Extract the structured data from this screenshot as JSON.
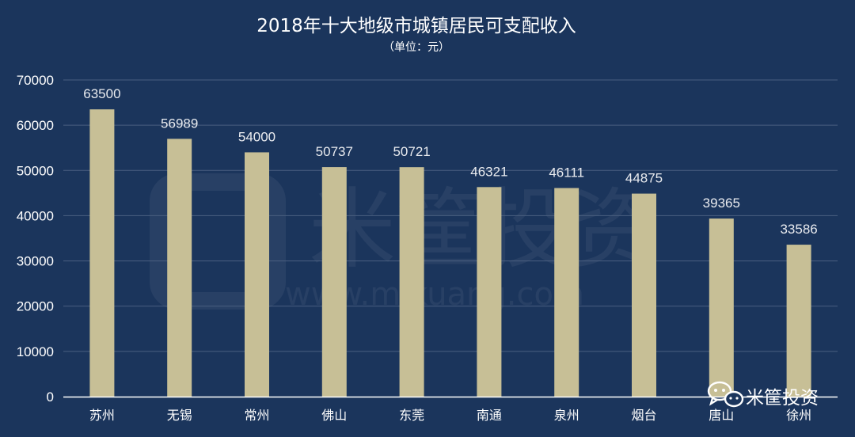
{
  "chart_data": {
    "type": "bar",
    "title": "2018年十大地级市城镇居民可支配收入",
    "subtitle": "（单位：元）",
    "categories": [
      "苏州",
      "无锡",
      "常州",
      "佛山",
      "东莞",
      "南通",
      "泉州",
      "烟台",
      "唐山",
      "徐州"
    ],
    "values": [
      63500,
      56989,
      54000,
      50737,
      50721,
      46321,
      46111,
      44875,
      39365,
      33586
    ],
    "ylim": [
      0,
      70000
    ],
    "yticks": [
      0,
      10000,
      20000,
      30000,
      40000,
      50000,
      60000,
      70000
    ],
    "grid": true,
    "bar_color": "#c7bf96",
    "background_color": "#1b355c",
    "grid_color": "#4a5f80"
  },
  "watermark": {
    "text": "米筐投资",
    "url": "www.mikuang.com"
  },
  "brand": {
    "label": "米筐投资",
    "icon": "wechat-icon"
  }
}
